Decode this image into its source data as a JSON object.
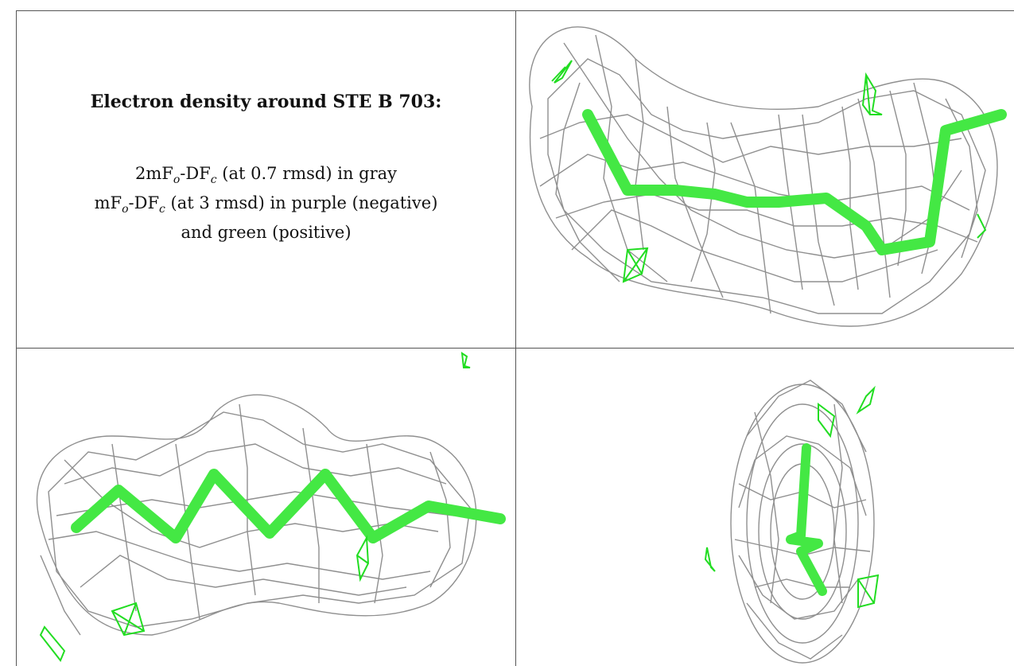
{
  "caption": {
    "title": "Electron density around STE B 703:",
    "line1": {
      "a": "2mF",
      "b": "o",
      "c": "-DF",
      "d": "c",
      "e": " (at 0.7 rmsd) in gray"
    },
    "line2": {
      "a": "mF",
      "b": "o",
      "c": "-DF",
      "d": "c",
      "e": " (at 3 rmsd) in purple (negative)"
    },
    "line3": "and green (positive)"
  },
  "colors": {
    "mesh": "#8a8a8a",
    "ligand": "#44e844",
    "difference_positive": "#22dd22",
    "border": "#555555"
  }
}
